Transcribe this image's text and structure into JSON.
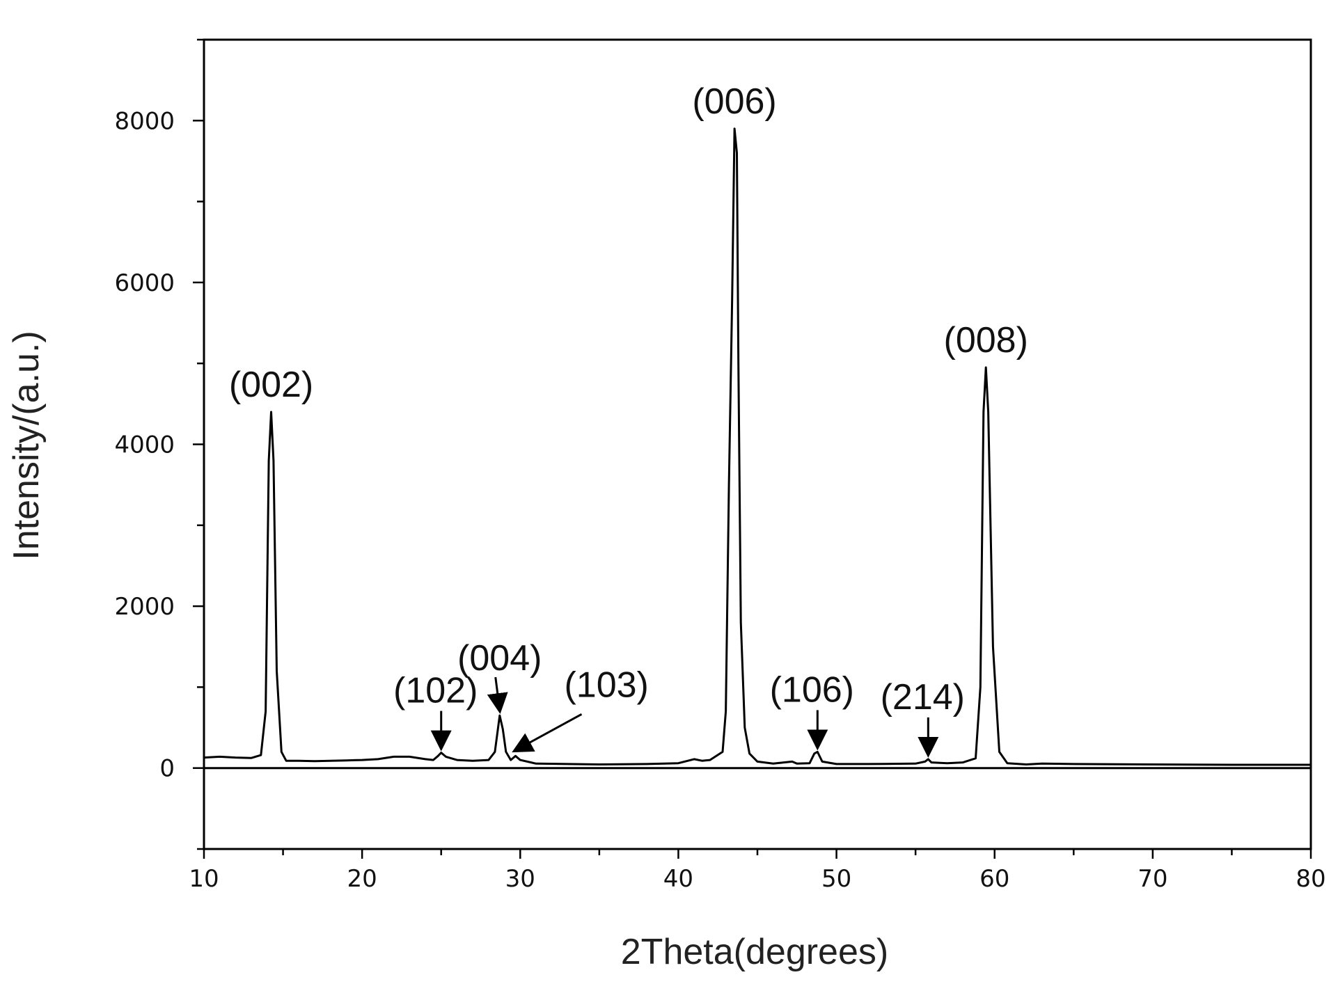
{
  "colors": {
    "line": "#000000",
    "axis": "#000000",
    "text": "#111111",
    "background": "#ffffff"
  },
  "chart_data": {
    "type": "line",
    "title": "",
    "xlabel": "2Theta(degrees)",
    "ylabel": "Intensity/(a.u.)",
    "xlim": [
      10,
      80
    ],
    "ylim": [
      -1000,
      9000
    ],
    "x_ticks": [
      10,
      20,
      30,
      40,
      50,
      60,
      70,
      80
    ],
    "x_tick_labels": [
      "10",
      "20",
      "30",
      "40",
      "50",
      "60",
      "70",
      "80"
    ],
    "x_minor_step": 5,
    "y_ticks": [
      0,
      2000,
      4000,
      6000,
      8000
    ],
    "y_tick_labels": [
      "0",
      "2000",
      "4000",
      "6000",
      "8000"
    ],
    "y_minor_step": 1000,
    "grid": false,
    "legend": "none",
    "baseline_y": 0,
    "series": [
      {
        "points": [
          [
            10.0,
            130
          ],
          [
            11.0,
            140
          ],
          [
            12.0,
            130
          ],
          [
            13.0,
            125
          ],
          [
            13.6,
            160
          ],
          [
            13.9,
            700
          ],
          [
            14.1,
            3800
          ],
          [
            14.25,
            4400
          ],
          [
            14.4,
            3800
          ],
          [
            14.6,
            1200
          ],
          [
            14.9,
            200
          ],
          [
            15.2,
            90
          ],
          [
            16.0,
            90
          ],
          [
            17.0,
            85
          ],
          [
            18.0,
            90
          ],
          [
            19.0,
            95
          ],
          [
            20.0,
            100
          ],
          [
            21.0,
            110
          ],
          [
            22.0,
            140
          ],
          [
            23.0,
            140
          ],
          [
            24.0,
            110
          ],
          [
            24.5,
            100
          ],
          [
            24.8,
            150
          ],
          [
            25.0,
            190
          ],
          [
            25.3,
            140
          ],
          [
            26.0,
            100
          ],
          [
            27.0,
            90
          ],
          [
            28.0,
            100
          ],
          [
            28.4,
            200
          ],
          [
            28.7,
            650
          ],
          [
            28.9,
            480
          ],
          [
            29.1,
            200
          ],
          [
            29.4,
            100
          ],
          [
            29.7,
            150
          ],
          [
            30.0,
            100
          ],
          [
            31.0,
            55
          ],
          [
            33.0,
            50
          ],
          [
            35.0,
            45
          ],
          [
            38.0,
            50
          ],
          [
            40.0,
            60
          ],
          [
            41.0,
            110
          ],
          [
            41.5,
            90
          ],
          [
            42.0,
            100
          ],
          [
            42.8,
            200
          ],
          [
            43.0,
            700
          ],
          [
            43.2,
            3500
          ],
          [
            43.4,
            5800
          ],
          [
            43.55,
            7900
          ],
          [
            43.7,
            7600
          ],
          [
            43.8,
            5000
          ],
          [
            43.95,
            1800
          ],
          [
            44.2,
            500
          ],
          [
            44.5,
            180
          ],
          [
            45.0,
            80
          ],
          [
            46.0,
            55
          ],
          [
            47.2,
            80
          ],
          [
            47.5,
            55
          ],
          [
            48.3,
            60
          ],
          [
            48.6,
            180
          ],
          [
            48.8,
            200
          ],
          [
            49.1,
            80
          ],
          [
            50.0,
            50
          ],
          [
            52.0,
            50
          ],
          [
            55.0,
            55
          ],
          [
            55.6,
            80
          ],
          [
            55.8,
            110
          ],
          [
            56.0,
            70
          ],
          [
            57.0,
            60
          ],
          [
            58.0,
            70
          ],
          [
            58.8,
            120
          ],
          [
            59.1,
            1000
          ],
          [
            59.3,
            4400
          ],
          [
            59.45,
            4950
          ],
          [
            59.6,
            4400
          ],
          [
            59.9,
            1500
          ],
          [
            60.3,
            200
          ],
          [
            60.8,
            60
          ],
          [
            62.0,
            45
          ],
          [
            63.0,
            55
          ],
          [
            65.0,
            50
          ],
          [
            70.0,
            45
          ],
          [
            75.0,
            40
          ],
          [
            80.0,
            40
          ]
        ]
      }
    ],
    "annotations": [
      {
        "text": "(002)",
        "peak_x": 14.25,
        "peak_y": 4400,
        "arrow": false
      },
      {
        "text": "(102)",
        "peak_x": 25.0,
        "peak_y": 190,
        "arrow": true
      },
      {
        "text": "(004)",
        "peak_x": 28.7,
        "peak_y": 650,
        "arrow": true
      },
      {
        "text": "(103)",
        "peak_x": 29.7,
        "peak_y": 150,
        "arrow": true
      },
      {
        "text": "(006)",
        "peak_x": 43.55,
        "peak_y": 7900,
        "arrow": false
      },
      {
        "text": "(106)",
        "peak_x": 48.8,
        "peak_y": 200,
        "arrow": true
      },
      {
        "text": "(214)",
        "peak_x": 55.8,
        "peak_y": 110,
        "arrow": true
      },
      {
        "text": "(008)",
        "peak_x": 59.45,
        "peak_y": 4950,
        "arrow": false
      }
    ]
  }
}
